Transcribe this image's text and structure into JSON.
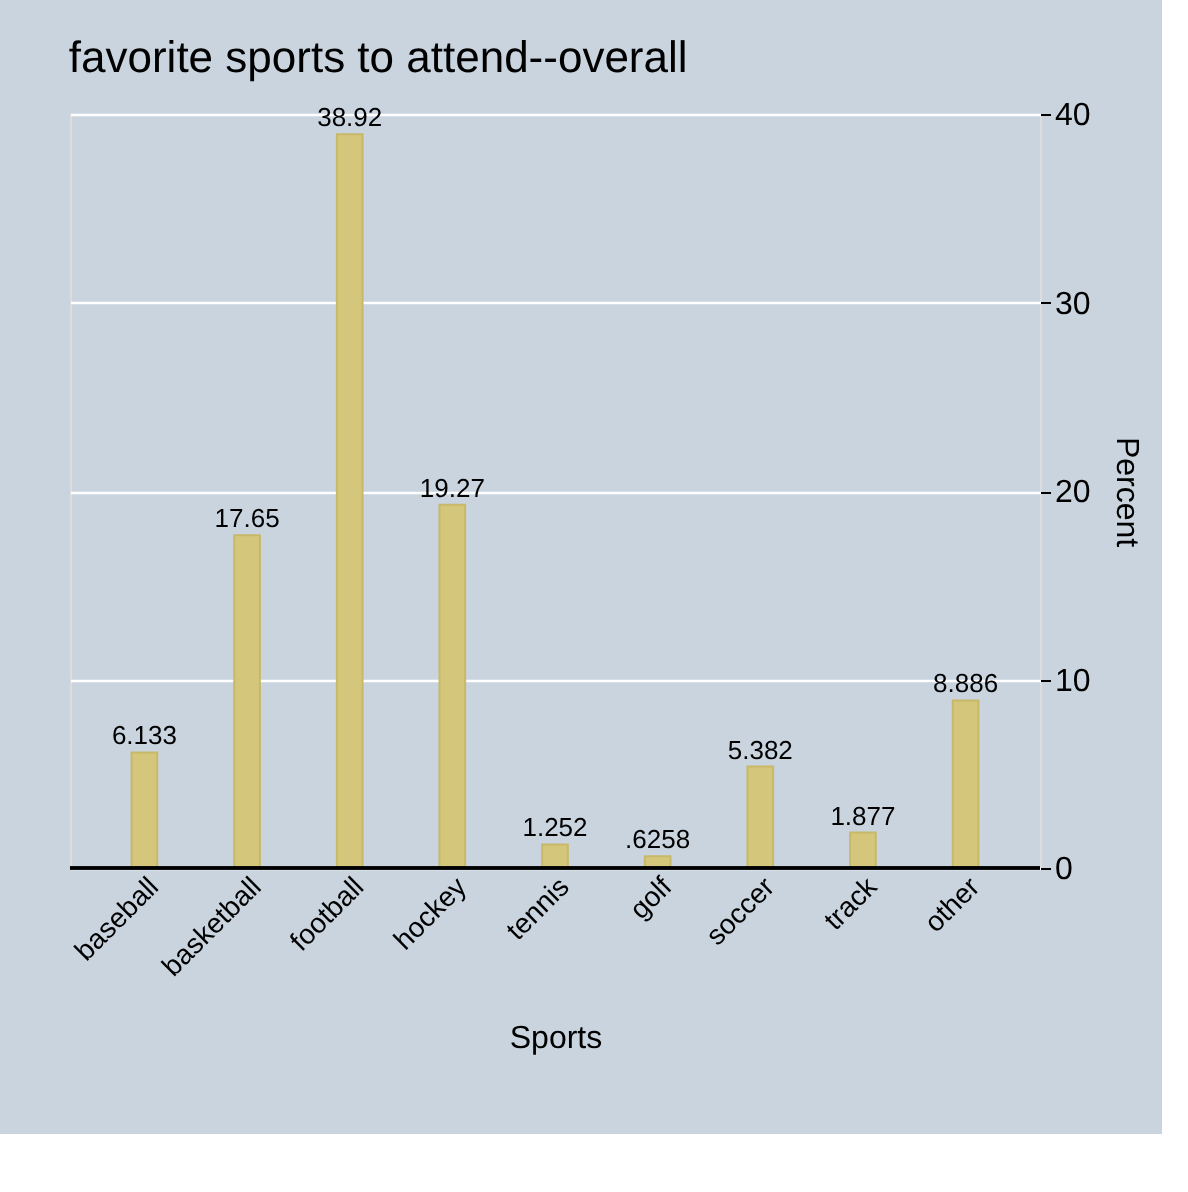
{
  "chart_data": {
    "type": "bar",
    "title": "favorite sports to attend--overall",
    "xlabel": "Sports",
    "ylabel": "Percent",
    "categories": [
      "baseball",
      "basketball",
      "football",
      "hockey",
      "tennis",
      "golf",
      "soccer",
      "track",
      "other"
    ],
    "values": [
      6.133,
      17.65,
      38.92,
      19.27,
      1.252,
      0.6258,
      5.382,
      1.877,
      8.886
    ],
    "value_labels": [
      "6.133",
      "17.65",
      "38.92",
      "19.27",
      "1.252",
      ".6258",
      "5.382",
      "1.877",
      "8.886"
    ],
    "color": "#d4c77c",
    "ylim": [
      0,
      40
    ],
    "yticks": [
      0,
      10,
      20,
      30,
      40
    ],
    "grid": "y"
  }
}
